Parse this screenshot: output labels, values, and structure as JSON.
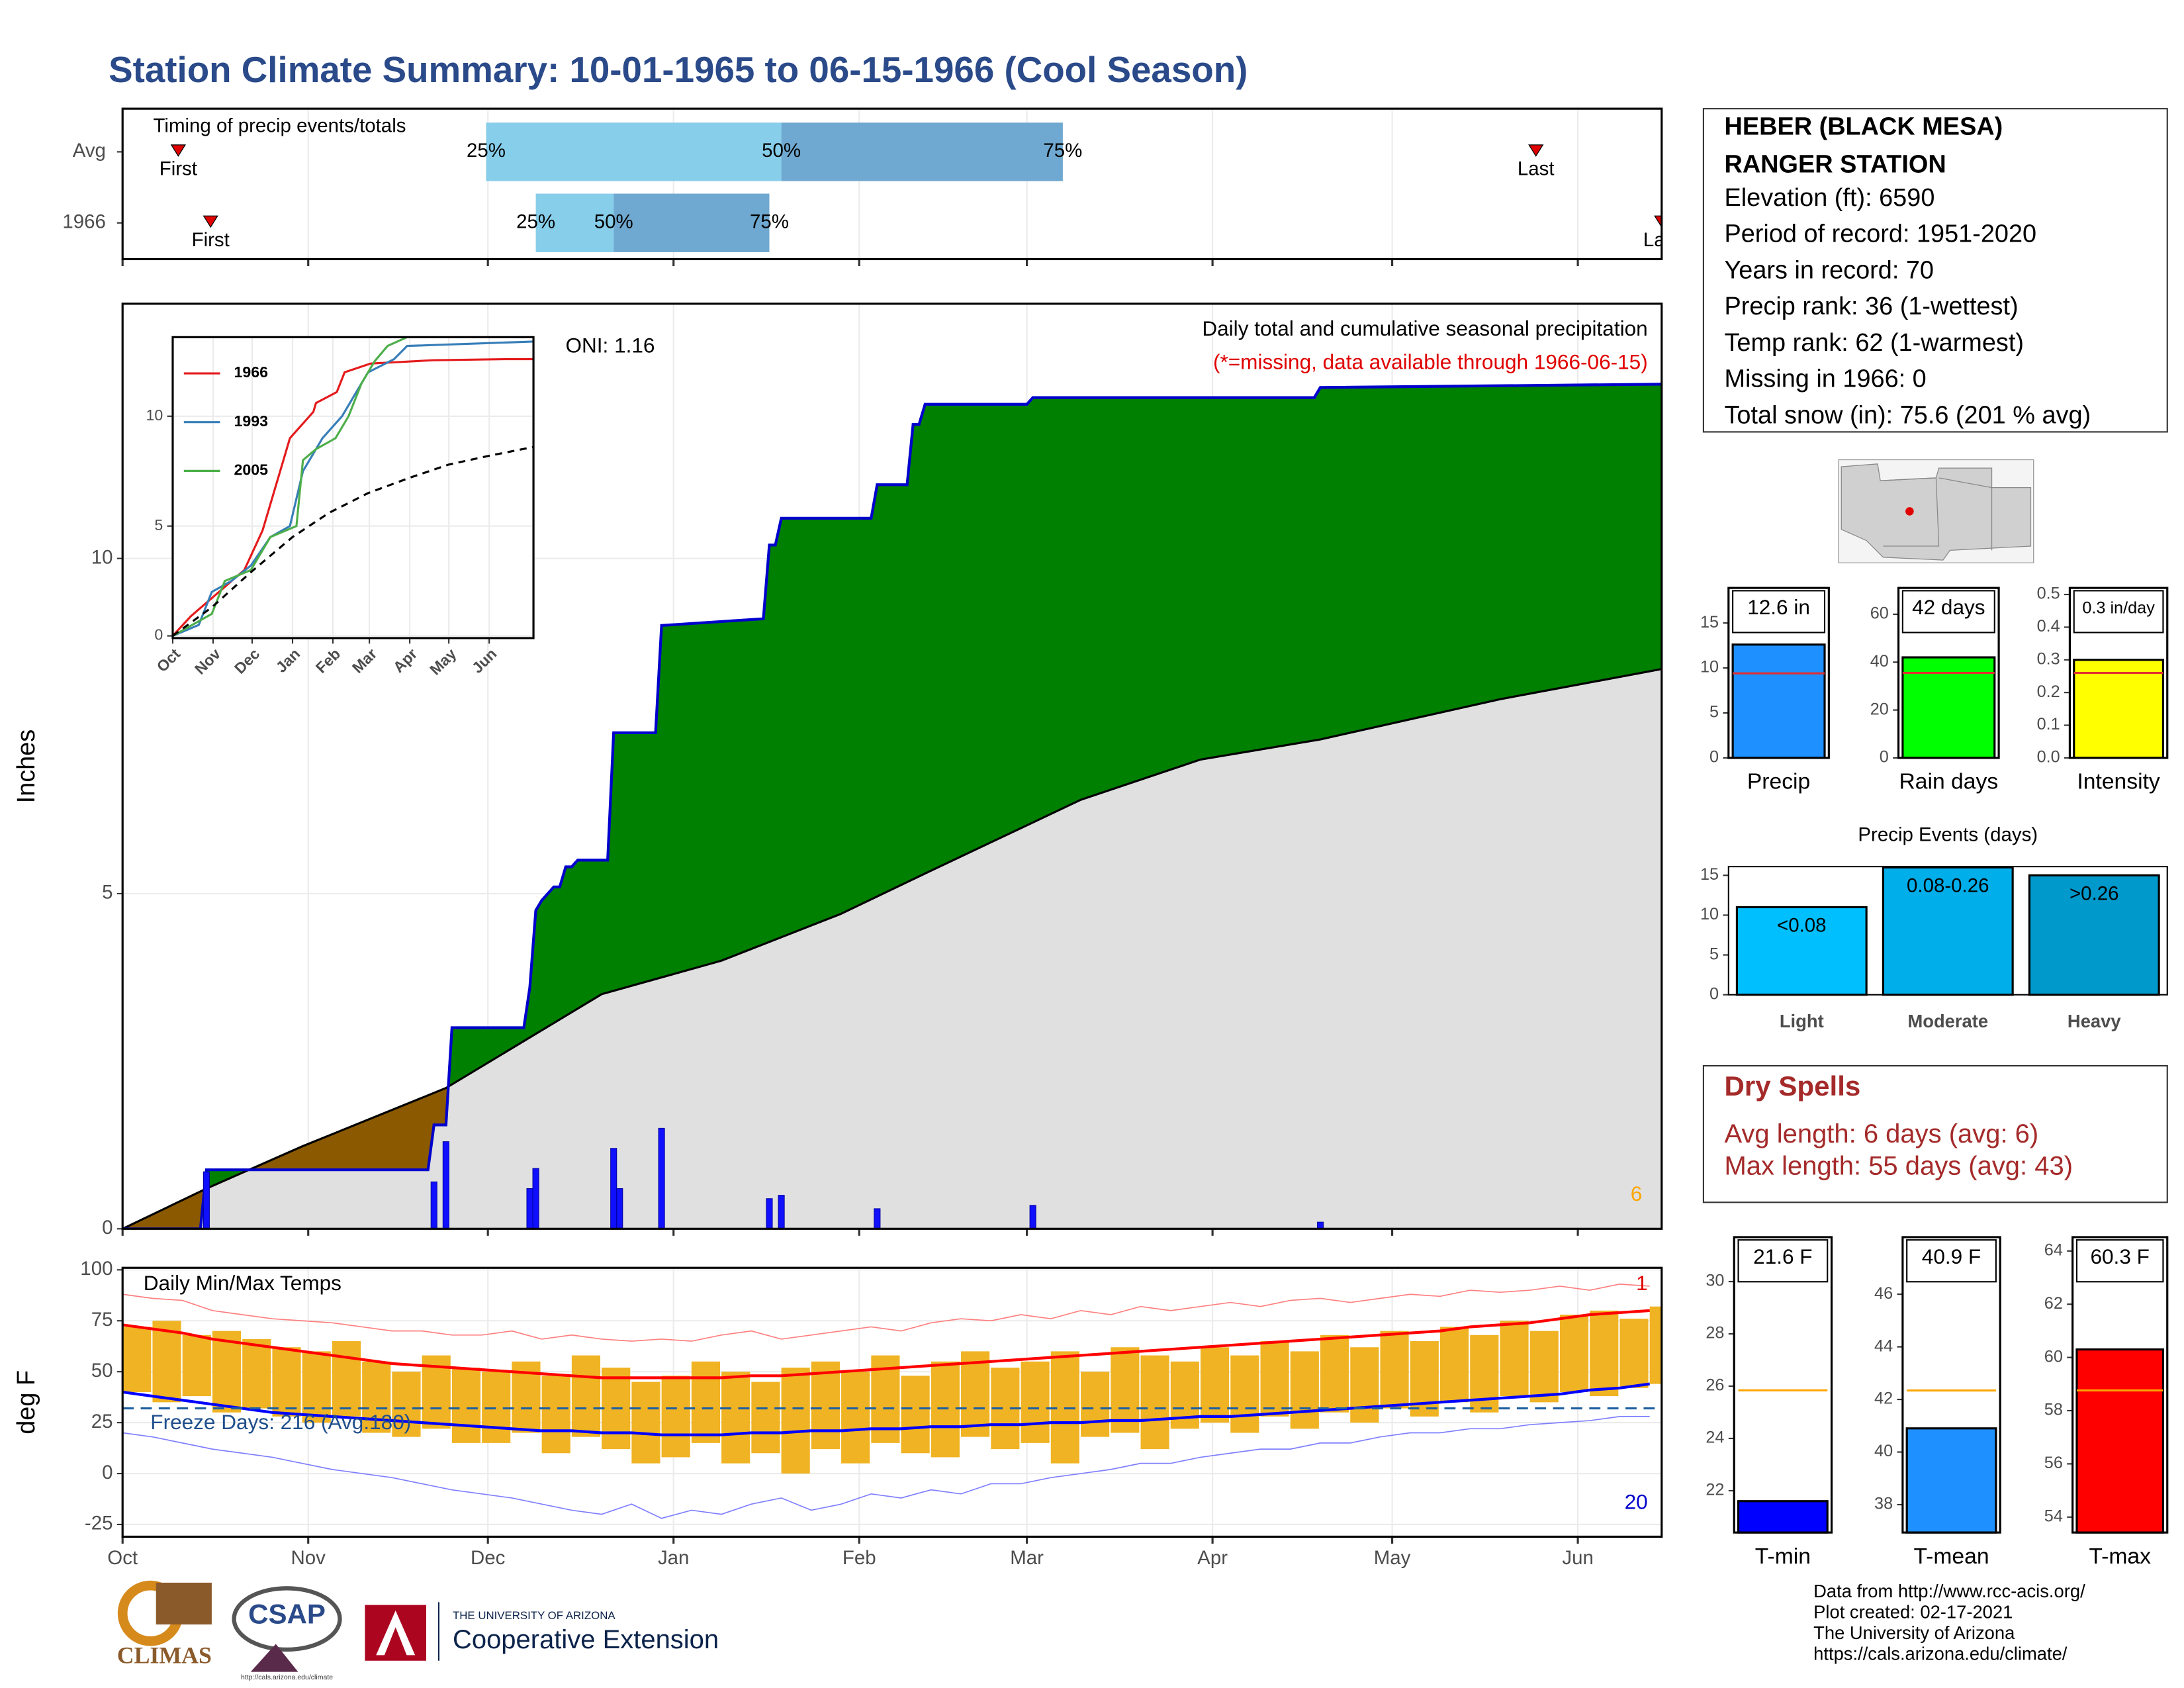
{
  "title": "Station Climate Summary: 10-01-1965 to 06-15-1966 (Cool Season)",
  "station": {
    "name": "HEBER (BLACK MESA)",
    "name2": "RANGER STATION",
    "lines": [
      "Elevation (ft): 6590",
      "Period of record: 1951-2020",
      "Years in record: 70",
      "Precip rank: 36 (1-wettest)",
      "Temp rank: 62 (1-warmest)",
      "Missing in 1966: 0",
      "Total snow (in): 75.6 (201 % avg)"
    ]
  },
  "dry_spells": {
    "title": "Dry Spells",
    "lines": [
      "Avg length: 6 days (avg: 6)",
      "Max length: 55 days (avg: 43)"
    ]
  },
  "footer": [
    "Data from http://www.rcc-acis.org/",
    "Plot created: 02-17-2021",
    "The University of Arizona",
    "https://cals.arizona.edu/climate/"
  ],
  "logos": {
    "climas": "CLIMAS",
    "csap": "CSAP",
    "csap_url": "http://cals.arizona.edu/climate",
    "ua": "THE UNIVERSITY OF ARIZONA",
    "coop": "Cooperative Extension"
  },
  "chart_data": [
    {
      "type": "timing",
      "title": "Timing of precip events/totals",
      "categories": [
        "Avg",
        "1966"
      ],
      "xlim": [
        0,
        257
      ],
      "xticks": [
        0,
        31,
        61,
        92,
        123,
        151,
        182,
        212,
        243
      ],
      "grid": true,
      "quartiles": [
        [
          60.7,
          110,
          157
        ],
        [
          69,
          82,
          108
        ]
      ],
      "quartile_labels": [
        "25%",
        "50%",
        "75%"
      ],
      "colors": [
        "#87ceeb",
        "#6fa8d0"
      ],
      "marker_color": "#e00000",
      "markers": {
        "first": [
          9.3,
          14.7
        ],
        "last": [
          236,
          257
        ]
      },
      "first_label": "First",
      "last_label": "Last"
    },
    {
      "type": "cumulative",
      "title": "Daily total and cumulative seasonal precipitation",
      "subtitle": "(*=missing, data available through 1966-06-15)",
      "subtitle_color": "#e00000",
      "annotation": "ONI: 1.16",
      "corner_label": "6",
      "corner_color": "#ffa500",
      "ylabel": "Inches",
      "xlim": [
        0,
        257
      ],
      "xticks": [
        0,
        31,
        61,
        92,
        123,
        151,
        182,
        212,
        243
      ],
      "ylim": [
        0,
        13.8
      ],
      "yticks": [
        0,
        5,
        10
      ],
      "grid": true,
      "below_color": "#8b5a00",
      "series": [
        {
          "color": "#008000",
          "line_color": "#0000cd",
          "x": [
            0,
            13,
            14,
            51,
            52,
            54,
            55,
            67,
            68,
            69,
            70,
            71,
            72,
            73,
            74,
            75,
            76,
            81,
            82,
            89,
            90,
            107,
            108,
            109,
            110,
            125,
            126,
            131,
            132,
            133,
            134,
            151,
            152,
            199,
            200,
            257
          ],
          "values": [
            0,
            0,
            0.88,
            0.88,
            1.55,
            1.55,
            3.0,
            3.0,
            3.6,
            4.75,
            4.9,
            5.0,
            5.1,
            5.1,
            5.4,
            5.4,
            5.5,
            5.5,
            7.4,
            7.4,
            9.0,
            9.1,
            10.2,
            10.2,
            10.6,
            10.6,
            11.1,
            11.1,
            12.0,
            12.0,
            12.3,
            12.3,
            12.4,
            12.4,
            12.55,
            12.6
          ]
        },
        {
          "color": "#e0e0e0",
          "line_color": "#000000",
          "x": [
            0,
            14,
            30,
            54,
            80,
            100,
            120,
            134,
            160,
            180,
            200,
            230,
            257
          ],
          "values": [
            0,
            0.6,
            1.23,
            2.1,
            3.5,
            4.0,
            4.7,
            5.3,
            6.4,
            7.0,
            7.3,
            7.9,
            8.35
          ]
        }
      ],
      "daily": {
        "color": "#1010ff",
        "x": [
          14,
          52,
          54,
          68,
          69,
          82,
          83,
          90,
          108,
          110,
          126,
          152,
          200
        ],
        "values": [
          0.85,
          0.7,
          1.3,
          0.6,
          0.9,
          1.2,
          0.6,
          1.5,
          0.45,
          0.5,
          0.3,
          0.35,
          0.1
        ]
      }
    },
    {
      "type": "line",
      "xlim": [
        0,
        277
      ],
      "ylim": [
        -0.1,
        13.6
      ],
      "yticks": [
        0,
        5,
        10
      ],
      "grid": true,
      "xticks": [
        {
          "value": 0,
          "label": "Oct"
        },
        {
          "value": 31,
          "label": "Nov"
        },
        {
          "value": 61,
          "label": "Dec"
        },
        {
          "value": 92,
          "label": "Jan"
        },
        {
          "value": 123,
          "label": "Feb"
        },
        {
          "value": 151,
          "label": "Mar"
        },
        {
          "value": 182,
          "label": "Apr"
        },
        {
          "value": 212,
          "label": "May"
        },
        {
          "value": 243,
          "label": "Jun"
        }
      ],
      "series": [
        {
          "name": "1966",
          "color": "#e41a1c",
          "x": [
            0,
            14,
            55,
            69,
            82,
            90,
            108,
            110,
            126,
            132,
            152,
            200,
            257,
            277
          ],
          "values": [
            0,
            0.9,
            3,
            4.8,
            7.4,
            9,
            10.2,
            10.6,
            11.1,
            12,
            12.4,
            12.55,
            12.6,
            12.6
          ]
        },
        {
          "name": "1993",
          "color": "#377eb8",
          "x": [
            0,
            20,
            30,
            45,
            60,
            75,
            90,
            100,
            115,
            130,
            140,
            150,
            170,
            180,
            277
          ],
          "values": [
            0,
            0.5,
            2,
            2.5,
            3.2,
            4.5,
            5,
            7.5,
            9,
            10,
            11,
            12,
            12.6,
            13.2,
            13.4
          ]
        },
        {
          "name": "2005",
          "color": "#4daf4a",
          "x": [
            0,
            30,
            40,
            60,
            75,
            95,
            100,
            110,
            125,
            135,
            145,
            155,
            165,
            180,
            277
          ],
          "values": [
            0,
            1,
            2.5,
            3,
            4.5,
            5,
            8,
            8.5,
            9,
            10,
            11.5,
            12.5,
            13.2,
            13.6,
            13.6
          ]
        },
        {
          "color": "#000000",
          "dashed": true,
          "x": [
            0,
            30,
            60,
            92,
            120,
            150,
            182,
            212,
            243,
            277
          ],
          "values": [
            0,
            1.3,
            2.9,
            4.5,
            5.6,
            6.5,
            7.2,
            7.8,
            8.2,
            8.6
          ]
        }
      ]
    },
    {
      "type": "temperature",
      "title": "Daily Min/Max Temps",
      "annotation": "Freeze Days: 216 (Avg:180)",
      "annotation_color": "#1f4e8c",
      "ylabel": "deg F",
      "xlim": [
        0,
        257
      ],
      "xticks": [
        {
          "value": 0,
          "label": "Oct"
        },
        {
          "value": 31,
          "label": "Nov"
        },
        {
          "value": 61,
          "label": "Dec"
        },
        {
          "value": 92,
          "label": "Jan"
        },
        {
          "value": 123,
          "label": "Feb"
        },
        {
          "value": 151,
          "label": "Mar"
        },
        {
          "value": 182,
          "label": "Apr"
        },
        {
          "value": 212,
          "label": "May"
        },
        {
          "value": 243,
          "label": "Jun"
        }
      ],
      "ylim": [
        -31,
        101
      ],
      "yticks": [
        -25,
        0,
        25,
        50,
        75,
        100
      ],
      "grid": true,
      "freeze": 32,
      "freeze_color": "#2060a0",
      "bar_color": "#f0b323",
      "x": [
        0,
        5,
        10,
        15,
        20,
        25,
        30,
        35,
        40,
        45,
        50,
        55,
        60,
        65,
        70,
        75,
        80,
        85,
        90,
        95,
        100,
        105,
        110,
        115,
        120,
        125,
        130,
        135,
        140,
        145,
        150,
        155,
        160,
        165,
        170,
        175,
        180,
        185,
        190,
        195,
        200,
        205,
        210,
        215,
        220,
        225,
        230,
        235,
        240,
        245,
        250,
        255
      ],
      "max": [
        72,
        75,
        68,
        70,
        66,
        62,
        60,
        65,
        55,
        50,
        58,
        52,
        50,
        55,
        48,
        58,
        52,
        45,
        48,
        55,
        50,
        45,
        52,
        55,
        50,
        58,
        48,
        55,
        60,
        52,
        55,
        60,
        50,
        62,
        58,
        55,
        62,
        58,
        65,
        60,
        68,
        62,
        70,
        65,
        72,
        68,
        75,
        70,
        78,
        80,
        76,
        82
      ],
      "min": [
        40,
        35,
        38,
        30,
        32,
        28,
        25,
        28,
        20,
        18,
        22,
        15,
        15,
        20,
        10,
        18,
        12,
        5,
        8,
        15,
        5,
        10,
        0,
        12,
        5,
        15,
        10,
        8,
        18,
        12,
        15,
        5,
        18,
        20,
        12,
        22,
        25,
        20,
        28,
        22,
        30,
        25,
        32,
        28,
        35,
        30,
        38,
        35,
        40,
        38,
        42,
        44
      ],
      "series": [
        {
          "color": "#ff0000",
          "values": [
            73,
            71,
            69,
            66,
            64,
            62,
            60,
            58,
            56,
            54,
            53,
            52,
            51,
            50,
            49,
            48,
            47,
            47,
            47,
            47,
            47,
            48,
            48,
            49,
            50,
            51,
            52,
            53,
            54,
            55,
            56,
            57,
            58,
            59,
            60,
            61,
            62,
            63,
            64,
            65,
            66,
            67,
            68,
            69,
            70,
            72,
            73,
            74,
            76,
            78,
            79,
            80
          ]
        },
        {
          "color": "#0000ff",
          "values": [
            40,
            38,
            36,
            34,
            32,
            30,
            29,
            28,
            27,
            26,
            25,
            24,
            23,
            22,
            21,
            21,
            20,
            20,
            19,
            19,
            19,
            20,
            20,
            21,
            21,
            22,
            22,
            23,
            23,
            24,
            24,
            25,
            25,
            26,
            26,
            27,
            28,
            28,
            29,
            30,
            31,
            32,
            33,
            34,
            35,
            36,
            37,
            38,
            39,
            41,
            42,
            44
          ]
        },
        {
          "color": "#ff8080",
          "values": [
            88,
            86,
            85,
            80,
            78,
            76,
            75,
            74,
            72,
            70,
            70,
            68,
            68,
            70,
            66,
            68,
            66,
            65,
            66,
            65,
            68,
            70,
            66,
            68,
            70,
            72,
            70,
            74,
            76,
            75,
            78,
            76,
            80,
            78,
            82,
            80,
            82,
            84,
            82,
            85,
            86,
            84,
            86,
            88,
            87,
            90,
            89,
            90,
            92,
            90,
            93,
            92
          ]
        },
        {
          "color": "#8080ff",
          "values": [
            20,
            18,
            15,
            12,
            10,
            8,
            5,
            2,
            0,
            -2,
            -5,
            -8,
            -10,
            -12,
            -15,
            -18,
            -20,
            -15,
            -22,
            -18,
            -20,
            -15,
            -12,
            -18,
            -15,
            -10,
            -12,
            -8,
            -10,
            -5,
            -5,
            -2,
            0,
            2,
            5,
            5,
            8,
            10,
            12,
            12,
            15,
            15,
            18,
            20,
            20,
            22,
            22,
            24,
            25,
            26,
            28,
            28
          ]
        }
      ],
      "corner_labels": [
        {
          "text": "1",
          "color": "#e00000"
        },
        {
          "text": "20",
          "color": "#0000cc"
        }
      ]
    },
    {
      "type": "summary",
      "categories": [
        "Precip"
      ],
      "values": [
        12.6
      ],
      "value_labels": [
        "12.6 in"
      ],
      "avg": 9.4,
      "avg_color": "#e03030",
      "color": "#1e90ff",
      "ylim": [
        0,
        18.9
      ],
      "yticks": [
        0,
        5,
        10,
        15
      ]
    },
    {
      "type": "summary",
      "categories": [
        "Rain days"
      ],
      "values": [
        42
      ],
      "value_labels": [
        "42 days"
      ],
      "avg": 35.5,
      "avg_color": "#e03030",
      "color": "#00ff00",
      "ylim": [
        0,
        71
      ],
      "yticks": [
        0,
        20,
        40,
        60
      ]
    },
    {
      "type": "summary",
      "categories": [
        "Intensity"
      ],
      "values": [
        0.3
      ],
      "value_labels": [
        "0.3 in/day"
      ],
      "avg": 0.26,
      "avg_color": "#e03030",
      "color": "#ffff00",
      "ylim": [
        0,
        0.52
      ],
      "yticks": [
        {
          "value": 0,
          "label": "0.0"
        },
        0.1,
        0.2,
        0.3,
        0.4,
        0.5
      ]
    },
    {
      "type": "bar",
      "title": "Precip Events (days)",
      "categories": [
        "Light",
        "Moderate",
        "Heavy"
      ],
      "values": [
        11,
        16,
        15
      ],
      "bar_labels": [
        "<0.08",
        "0.08-0.26",
        ">0.26"
      ],
      "colors": [
        "#00bfff",
        "#00aeea",
        "#0099cc"
      ],
      "ylim": [
        0,
        16.1
      ],
      "yticks": [
        0,
        5,
        10,
        15
      ]
    },
    {
      "type": "summary",
      "categories": [
        "T-min"
      ],
      "values": [
        21.6
      ],
      "value_labels": [
        "21.6 F"
      ],
      "avg": 25.84,
      "avg_color": "#ffa500",
      "color": "#0000ff",
      "ylim": [
        20.4,
        31.7
      ],
      "yticks": [
        22,
        24,
        26,
        28,
        30
      ]
    },
    {
      "type": "summary",
      "categories": [
        "T-mean"
      ],
      "values": [
        40.9
      ],
      "value_labels": [
        "40.9 F"
      ],
      "avg": 42.34,
      "avg_color": "#ffa500",
      "color": "#1e90ff",
      "ylim": [
        36.94,
        48.17
      ],
      "yticks": [
        38,
        40,
        42,
        44,
        46
      ]
    },
    {
      "type": "summary",
      "categories": [
        "T-max"
      ],
      "values": [
        60.3
      ],
      "value_labels": [
        "60.3 F"
      ],
      "avg": 58.76,
      "avg_color": "#ffa500",
      "color": "#ff0000",
      "ylim": [
        53.42,
        64.52
      ],
      "yticks": [
        54,
        56,
        58,
        60,
        62,
        64
      ]
    }
  ]
}
